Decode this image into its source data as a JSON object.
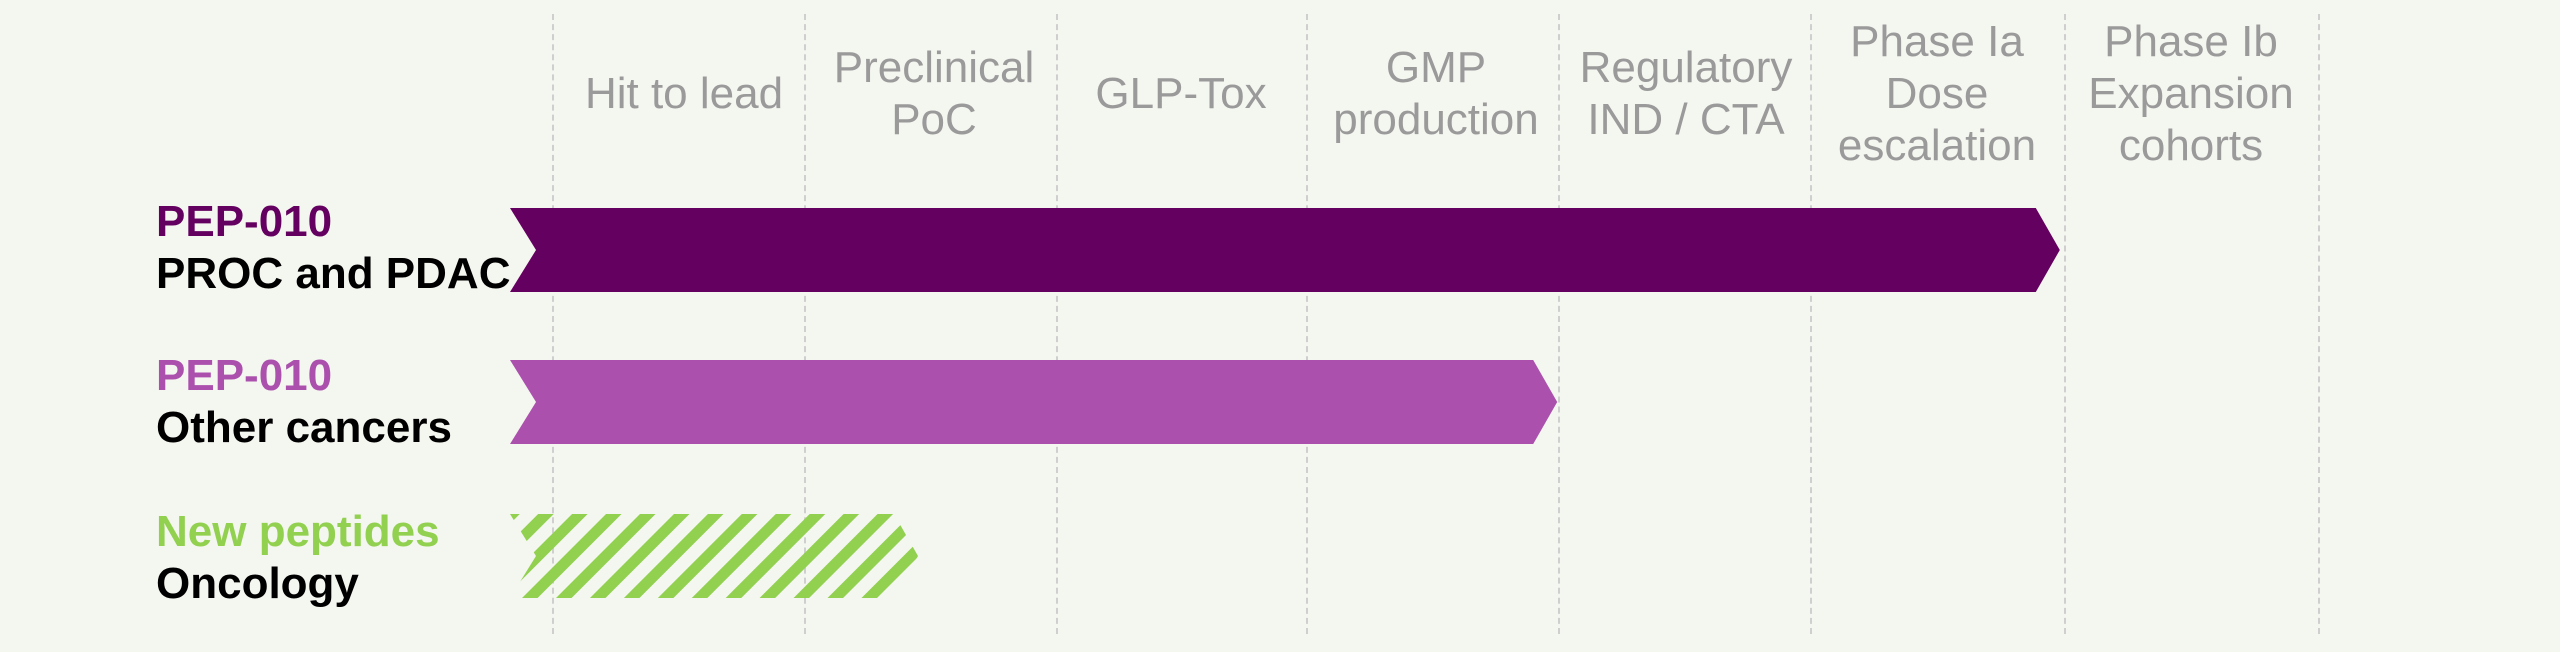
{
  "phases": [
    {
      "label": "Hit to lead"
    },
    {
      "label": "Preclinical\nPoC"
    },
    {
      "label": "GLP-Tox"
    },
    {
      "label": "GMP\nproduction"
    },
    {
      "label": "Regulatory\nIND / CTA"
    },
    {
      "label": "Phase Ia\nDose\nescalation"
    },
    {
      "label": "Phase Ib\nExpansion\ncohorts"
    }
  ],
  "programs": [
    {
      "name": "PEP-010",
      "indication": "PROC and PDAC",
      "name_color": "#640060",
      "bar_color": "#640060",
      "fill_style": "solid",
      "progress_phases": 6
    },
    {
      "name": "PEP-010",
      "indication": "Other cancers",
      "name_color": "#ab51ad",
      "bar_color": "#ab51ad",
      "fill_style": "solid",
      "progress_phases": 4
    },
    {
      "name": "New peptides",
      "indication": "Oncology",
      "name_color": "#92d050",
      "bar_color": "#92d050",
      "fill_style": "hatched",
      "progress_phases": 1.5
    }
  ]
}
